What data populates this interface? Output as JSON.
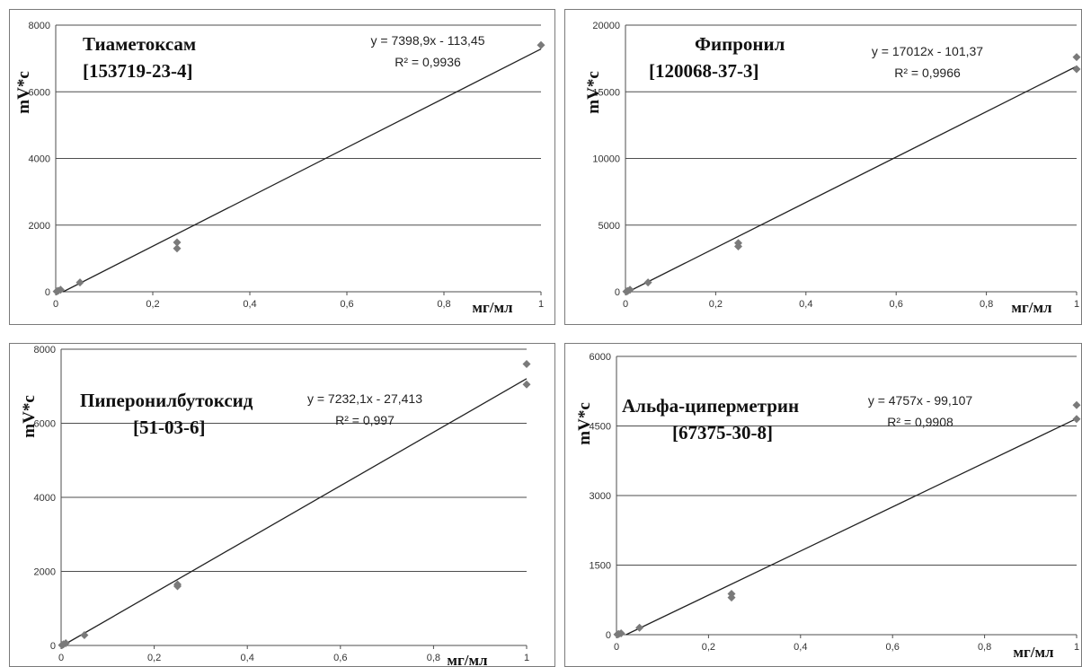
{
  "chart_data": [
    {
      "type": "scatter",
      "title": "Тиаметоксам",
      "subtitle": "[153719-23-4]",
      "equation": "y = 7398,9x - 113,45",
      "r2": "R² = 0,9936",
      "xlabel": "мг/мл",
      "ylabel": "mV*c",
      "xlim": [
        0,
        1
      ],
      "ylim": [
        0,
        8000
      ],
      "xticks": [
        0,
        0.2,
        0.4,
        0.6,
        0.8,
        1
      ],
      "xtick_labels": [
        "0",
        "0,2",
        "0,4",
        "0,6",
        "0,8",
        "1"
      ],
      "yticks": [
        0,
        2000,
        4000,
        6000,
        8000
      ],
      "ytick_labels": [
        "0",
        "2000",
        "4000",
        "6000",
        "8000"
      ],
      "trend": {
        "slope": 7398.9,
        "intercept": -113.45
      },
      "points": [
        [
          0.002,
          10
        ],
        [
          0.005,
          30
        ],
        [
          0.01,
          60
        ],
        [
          0.05,
          280
        ],
        [
          0.25,
          1300
        ],
        [
          0.25,
          1480
        ],
        [
          1,
          7400
        ]
      ],
      "grid": true
    },
    {
      "type": "scatter",
      "title": "Фипронил",
      "subtitle": "[120068-37-3]",
      "equation": "y = 17012x - 101,37",
      "r2": "R² = 0,9966",
      "xlabel": "мг/мл",
      "ylabel": "mV*c",
      "xlim": [
        0,
        1
      ],
      "ylim": [
        0,
        20000
      ],
      "xticks": [
        0,
        0.2,
        0.4,
        0.6,
        0.8,
        1
      ],
      "xtick_labels": [
        "0",
        "0,2",
        "0,4",
        "0,6",
        "0,8",
        "1"
      ],
      "yticks": [
        0,
        5000,
        10000,
        15000,
        20000
      ],
      "ytick_labels": [
        "0",
        "5000",
        "10000",
        "15000",
        "20000"
      ],
      "trend": {
        "slope": 17012,
        "intercept": -101.37
      },
      "points": [
        [
          0.002,
          20
        ],
        [
          0.005,
          60
        ],
        [
          0.01,
          150
        ],
        [
          0.05,
          700
        ],
        [
          0.25,
          3400
        ],
        [
          0.25,
          3650
        ],
        [
          1,
          16700
        ],
        [
          1,
          17600
        ]
      ],
      "grid": true
    },
    {
      "type": "scatter",
      "title": "Пиперонилбутоксид",
      "subtitle": "[51-03-6]",
      "equation": "y = 7232,1x - 27,413",
      "r2": "R² = 0,997",
      "xlabel": "мг/мл",
      "ylabel": "mV*c",
      "xlim": [
        0,
        1
      ],
      "ylim": [
        0,
        8000
      ],
      "xticks": [
        0,
        0.2,
        0.4,
        0.6,
        0.8,
        1
      ],
      "xtick_labels": [
        "0",
        "0,2",
        "0,4",
        "0,6",
        "0,8",
        "1"
      ],
      "yticks": [
        0,
        2000,
        4000,
        6000,
        8000
      ],
      "ytick_labels": [
        "0",
        "2000",
        "4000",
        "6000",
        "8000"
      ],
      "trend": {
        "slope": 7232.1,
        "intercept": -27.413
      },
      "points": [
        [
          0.002,
          10
        ],
        [
          0.005,
          30
        ],
        [
          0.01,
          60
        ],
        [
          0.05,
          280
        ],
        [
          0.25,
          1600
        ],
        [
          0.25,
          1650
        ],
        [
          1,
          7050
        ],
        [
          1,
          7600
        ]
      ],
      "grid": true
    },
    {
      "type": "scatter",
      "title": "Альфа-циперметрин",
      "subtitle": "[67375-30-8]",
      "equation": "y = 4757x - 99,107",
      "r2": "R² = 0,9908",
      "xlabel": "мг/мл",
      "ylabel": "mV*c",
      "xlim": [
        0,
        1
      ],
      "ylim": [
        0,
        6000
      ],
      "xticks": [
        0,
        0.2,
        0.4,
        0.6,
        0.8,
        1
      ],
      "xtick_labels": [
        "0",
        "0,2",
        "0,4",
        "0,6",
        "0,8",
        "1"
      ],
      "yticks": [
        0,
        1500,
        3000,
        4500,
        6000
      ],
      "ytick_labels": [
        "0",
        "1500",
        "3000",
        "4500",
        "6000"
      ],
      "trend": {
        "slope": 4757,
        "intercept": -99.107
      },
      "points": [
        [
          0.002,
          5
        ],
        [
          0.005,
          15
        ],
        [
          0.01,
          30
        ],
        [
          0.05,
          150
        ],
        [
          0.25,
          800
        ],
        [
          0.25,
          880
        ],
        [
          1,
          4650
        ],
        [
          1,
          4950
        ]
      ],
      "grid": true
    }
  ]
}
